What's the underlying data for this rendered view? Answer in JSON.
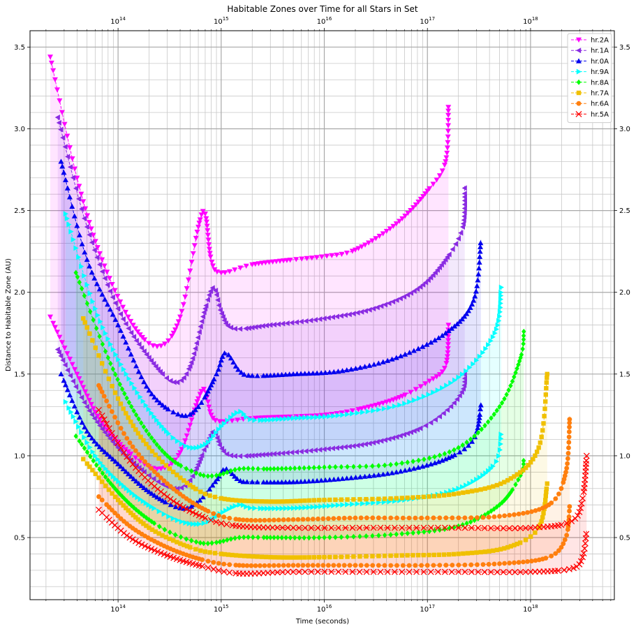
{
  "chart_data": {
    "type": "line",
    "title": "Habitable Zones over Time for all Stars in Set",
    "xlabel": "Time (seconds)",
    "ylabel": "Distance to Habitable Zone (AU)",
    "x_scale": "log",
    "xlim": [
      14000000000000.0,
      6.5e+18
    ],
    "ylim": [
      0.12,
      3.6
    ],
    "x_ticks": [
      100000000000000.0,
      1000000000000000.0,
      1e+16,
      1e+17,
      1e+18
    ],
    "x_tick_labels": [
      "10^14",
      "10^15",
      "10^16",
      "10^17",
      "10^18"
    ],
    "y_ticks": [
      0.5,
      1.0,
      1.5,
      2.0,
      2.5,
      3.0,
      3.5
    ],
    "y_tick_labels": [
      "0.5",
      "1.0",
      "1.5",
      "2.0",
      "2.5",
      "3.0",
      "3.5"
    ],
    "grid": true,
    "legend_position": "top-right",
    "series": [
      {
        "name": "hr.2A",
        "color": "#ff00ff",
        "marker": "triangle-down",
        "outer": [
          [
            22000000000000.0,
            3.44
          ],
          [
            40000000000000.0,
            2.7
          ],
          [
            70000000000000.0,
            2.2
          ],
          [
            140000000000000.0,
            1.8
          ],
          [
            250000000000000.0,
            1.67
          ],
          [
            400000000000000.0,
            1.85
          ],
          [
            600000000000000.0,
            2.4
          ],
          [
            700000000000000.0,
            2.48
          ],
          [
            800000000000000.0,
            2.2
          ],
          [
            1000000000000000.0,
            2.12
          ],
          [
            2000000000000000.0,
            2.17
          ],
          [
            5000000000000000.0,
            2.2
          ],
          [
            1e+16,
            2.22
          ],
          [
            2e+16,
            2.26
          ],
          [
            5e+16,
            2.42
          ],
          [
            1e+17,
            2.62
          ],
          [
            1.5e+17,
            2.8
          ],
          [
            1.6e+17,
            3.15
          ]
        ],
        "inner": [
          [
            22000000000000.0,
            1.85
          ],
          [
            40000000000000.0,
            1.5
          ],
          [
            70000000000000.0,
            1.2
          ],
          [
            140000000000000.0,
            1.0
          ],
          [
            250000000000000.0,
            0.92
          ],
          [
            400000000000000.0,
            1.02
          ],
          [
            600000000000000.0,
            1.35
          ],
          [
            700000000000000.0,
            1.4
          ],
          [
            800000000000000.0,
            1.25
          ],
          [
            1000000000000000.0,
            1.21
          ],
          [
            2000000000000000.0,
            1.23
          ],
          [
            5000000000000000.0,
            1.24
          ],
          [
            1e+16,
            1.25
          ],
          [
            2e+16,
            1.28
          ],
          [
            5e+16,
            1.35
          ],
          [
            1e+17,
            1.45
          ],
          [
            1.5e+17,
            1.55
          ],
          [
            1.6e+17,
            1.8
          ]
        ]
      },
      {
        "name": "hr.1A",
        "color": "#8a2be2",
        "marker": "triangle-left",
        "outer": [
          [
            26000000000000.0,
            3.07
          ],
          [
            50000000000000.0,
            2.4
          ],
          [
            100000000000000.0,
            1.9
          ],
          [
            200000000000000.0,
            1.6
          ],
          [
            350000000000000.0,
            1.45
          ],
          [
            500000000000000.0,
            1.55
          ],
          [
            700000000000000.0,
            1.9
          ],
          [
            850000000000000.0,
            2.03
          ],
          [
            1000000000000000.0,
            1.88
          ],
          [
            1300000000000000.0,
            1.78
          ],
          [
            3000000000000000.0,
            1.8
          ],
          [
            1e+16,
            1.84
          ],
          [
            3e+16,
            1.9
          ],
          [
            8e+16,
            2.02
          ],
          [
            1.5e+17,
            2.2
          ],
          [
            2.2e+17,
            2.4
          ],
          [
            2.3e+17,
            2.65
          ]
        ],
        "inner": [
          [
            26000000000000.0,
            1.65
          ],
          [
            50000000000000.0,
            1.3
          ],
          [
            100000000000000.0,
            1.05
          ],
          [
            200000000000000.0,
            0.88
          ],
          [
            350000000000000.0,
            0.8
          ],
          [
            500000000000000.0,
            0.85
          ],
          [
            700000000000000.0,
            1.05
          ],
          [
            850000000000000.0,
            1.15
          ],
          [
            1000000000000000.0,
            1.05
          ],
          [
            1300000000000000.0,
            1.0
          ],
          [
            3000000000000000.0,
            1.01
          ],
          [
            1e+16,
            1.04
          ],
          [
            3e+16,
            1.08
          ],
          [
            8e+16,
            1.16
          ],
          [
            1.5e+17,
            1.27
          ],
          [
            2.2e+17,
            1.4
          ],
          [
            2.3e+17,
            1.51
          ]
        ]
      },
      {
        "name": "hr.0A",
        "color": "#0000ee",
        "marker": "triangle-up",
        "outer": [
          [
            28000000000000.0,
            2.8
          ],
          [
            50000000000000.0,
            2.2
          ],
          [
            100000000000000.0,
            1.8
          ],
          [
            200000000000000.0,
            1.4
          ],
          [
            400000000000000.0,
            1.25
          ],
          [
            600000000000000.0,
            1.3
          ],
          [
            900000000000000.0,
            1.5
          ],
          [
            1100000000000000.0,
            1.63
          ],
          [
            1500000000000000.0,
            1.52
          ],
          [
            2000000000000000.0,
            1.49
          ],
          [
            5000000000000000.0,
            1.5
          ],
          [
            1.5e+16,
            1.52
          ],
          [
            5e+16,
            1.6
          ],
          [
            1.5e+17,
            1.75
          ],
          [
            2.8e+17,
            1.95
          ],
          [
            3.3e+17,
            2.32
          ]
        ],
        "inner": [
          [
            28000000000000.0,
            1.5
          ],
          [
            50000000000000.0,
            1.15
          ],
          [
            100000000000000.0,
            0.95
          ],
          [
            200000000000000.0,
            0.78
          ],
          [
            400000000000000.0,
            0.68
          ],
          [
            600000000000000.0,
            0.72
          ],
          [
            900000000000000.0,
            0.85
          ],
          [
            1100000000000000.0,
            0.92
          ],
          [
            1500000000000000.0,
            0.85
          ],
          [
            2000000000000000.0,
            0.84
          ],
          [
            5000000000000000.0,
            0.84
          ],
          [
            1.5e+16,
            0.86
          ],
          [
            5e+16,
            0.9
          ],
          [
            1.5e+17,
            0.98
          ],
          [
            2.8e+17,
            1.1
          ],
          [
            3.3e+17,
            1.31
          ]
        ]
      },
      {
        "name": "hr.9A",
        "color": "#00ffff",
        "marker": "triangle-right",
        "outer": [
          [
            31000000000000.0,
            2.48
          ],
          [
            60000000000000.0,
            1.9
          ],
          [
            120000000000000.0,
            1.5
          ],
          [
            250000000000000.0,
            1.2
          ],
          [
            450000000000000.0,
            1.06
          ],
          [
            700000000000000.0,
            1.07
          ],
          [
            1000000000000000.0,
            1.18
          ],
          [
            1500000000000000.0,
            1.27
          ],
          [
            2000000000000000.0,
            1.22
          ],
          [
            5000000000000000.0,
            1.23
          ],
          [
            1.5e+16,
            1.25
          ],
          [
            6e+16,
            1.32
          ],
          [
            2e+17,
            1.48
          ],
          [
            4.5e+17,
            1.75
          ],
          [
            5.2e+17,
            2.03
          ]
        ],
        "inner": [
          [
            31000000000000.0,
            1.33
          ],
          [
            60000000000000.0,
            1.0
          ],
          [
            120000000000000.0,
            0.8
          ],
          [
            250000000000000.0,
            0.66
          ],
          [
            450000000000000.0,
            0.59
          ],
          [
            700000000000000.0,
            0.59
          ],
          [
            1000000000000000.0,
            0.65
          ],
          [
            1500000000000000.0,
            0.7
          ],
          [
            2000000000000000.0,
            0.68
          ],
          [
            5000000000000000.0,
            0.68
          ],
          [
            1.5e+16,
            0.7
          ],
          [
            6e+16,
            0.73
          ],
          [
            2e+17,
            0.8
          ],
          [
            4.5e+17,
            0.95
          ],
          [
            5.2e+17,
            1.14
          ]
        ]
      },
      {
        "name": "hr.8A",
        "color": "#00ff00",
        "marker": "diamond",
        "outer": [
          [
            39000000000000.0,
            2.12
          ],
          [
            80000000000000.0,
            1.6
          ],
          [
            150000000000000.0,
            1.25
          ],
          [
            300000000000000.0,
            1.0
          ],
          [
            600000000000000.0,
            0.89
          ],
          [
            900000000000000.0,
            0.88
          ],
          [
            1500000000000000.0,
            0.92
          ],
          [
            3000000000000000.0,
            0.92
          ],
          [
            1e+16,
            0.93
          ],
          [
            5e+16,
            0.95
          ],
          [
            2e+17,
            1.05
          ],
          [
            5e+17,
            1.3
          ],
          [
            8e+17,
            1.6
          ],
          [
            8.6e+17,
            1.76
          ]
        ],
        "inner": [
          [
            39000000000000.0,
            1.12
          ],
          [
            80000000000000.0,
            0.85
          ],
          [
            150000000000000.0,
            0.67
          ],
          [
            300000000000000.0,
            0.54
          ],
          [
            600000000000000.0,
            0.47
          ],
          [
            900000000000000.0,
            0.47
          ],
          [
            1500000000000000.0,
            0.5
          ],
          [
            3000000000000000.0,
            0.5
          ],
          [
            1e+16,
            0.5
          ],
          [
            5e+16,
            0.52
          ],
          [
            2e+17,
            0.57
          ],
          [
            5e+17,
            0.7
          ],
          [
            8e+17,
            0.88
          ],
          [
            8.6e+17,
            0.98
          ]
        ]
      },
      {
        "name": "hr.7A",
        "color": "#f0c000",
        "marker": "square",
        "outer": [
          [
            46000000000000.0,
            1.84
          ],
          [
            100000000000000.0,
            1.35
          ],
          [
            200000000000000.0,
            1.05
          ],
          [
            500000000000000.0,
            0.82
          ],
          [
            1000000000000000.0,
            0.74
          ],
          [
            3000000000000000.0,
            0.72
          ],
          [
            1e+16,
            0.73
          ],
          [
            5e+16,
            0.74
          ],
          [
            2e+17,
            0.77
          ],
          [
            6e+17,
            0.85
          ],
          [
            1.2e+18,
            1.05
          ],
          [
            1.45e+18,
            1.5
          ]
        ],
        "inner": [
          [
            46000000000000.0,
            0.98
          ],
          [
            100000000000000.0,
            0.73
          ],
          [
            200000000000000.0,
            0.56
          ],
          [
            500000000000000.0,
            0.44
          ],
          [
            1000000000000000.0,
            0.4
          ],
          [
            3000000000000000.0,
            0.38
          ],
          [
            1e+16,
            0.38
          ],
          [
            5e+16,
            0.39
          ],
          [
            2e+17,
            0.4
          ],
          [
            6e+17,
            0.44
          ],
          [
            1.2e+18,
            0.56
          ],
          [
            1.45e+18,
            0.83
          ]
        ]
      },
      {
        "name": "hr.6A",
        "color": "#ff7f0e",
        "marker": "circle",
        "outer": [
          [
            65000000000000.0,
            1.43
          ],
          [
            130000000000000.0,
            1.08
          ],
          [
            300000000000000.0,
            0.83
          ],
          [
            700000000000000.0,
            0.67
          ],
          [
            1500000000000000.0,
            0.61
          ],
          [
            5000000000000000.0,
            0.61
          ],
          [
            2e+16,
            0.62
          ],
          [
            1e+17,
            0.62
          ],
          [
            5e+17,
            0.63
          ],
          [
            1.5e+18,
            0.7
          ],
          [
            2.2e+18,
            0.9
          ],
          [
            2.4e+18,
            1.24
          ]
        ],
        "inner": [
          [
            65000000000000.0,
            0.75
          ],
          [
            130000000000000.0,
            0.57
          ],
          [
            300000000000000.0,
            0.44
          ],
          [
            700000000000000.0,
            0.36
          ],
          [
            1500000000000000.0,
            0.33
          ],
          [
            5000000000000000.0,
            0.33
          ],
          [
            2e+16,
            0.33
          ],
          [
            1e+17,
            0.33
          ],
          [
            5e+17,
            0.34
          ],
          [
            1.5e+18,
            0.38
          ],
          [
            2.2e+18,
            0.5
          ],
          [
            2.4e+18,
            0.7
          ]
        ]
      },
      {
        "name": "hr.5A",
        "color": "#ff0000",
        "marker": "x",
        "outer": [
          [
            65000000000000.0,
            1.28
          ],
          [
            130000000000000.0,
            0.97
          ],
          [
            300000000000000.0,
            0.75
          ],
          [
            700000000000000.0,
            0.62
          ],
          [
            1500000000000000.0,
            0.57
          ],
          [
            5000000000000000.0,
            0.56
          ],
          [
            3e+16,
            0.56
          ],
          [
            2e+17,
            0.56
          ],
          [
            1e+18,
            0.56
          ],
          [
            2.5e+18,
            0.6
          ],
          [
            3.2e+18,
            0.74
          ],
          [
            3.5e+18,
            1.0
          ]
        ],
        "inner": [
          [
            65000000000000.0,
            0.67
          ],
          [
            130000000000000.0,
            0.5
          ],
          [
            300000000000000.0,
            0.39
          ],
          [
            700000000000000.0,
            0.32
          ],
          [
            1500000000000000.0,
            0.28
          ],
          [
            5000000000000000.0,
            0.29
          ],
          [
            3e+16,
            0.29
          ],
          [
            2e+17,
            0.29
          ],
          [
            1e+18,
            0.29
          ],
          [
            2.5e+18,
            0.31
          ],
          [
            3.2e+18,
            0.38
          ],
          [
            3.5e+18,
            0.54
          ]
        ]
      }
    ]
  }
}
